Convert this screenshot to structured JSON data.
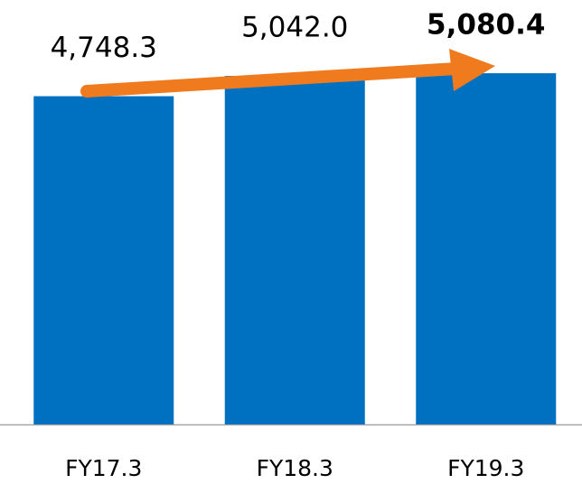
{
  "chart_data": {
    "type": "bar",
    "categories": [
      "FY17.3",
      "FY18.3",
      "FY19.3"
    ],
    "values": [
      4748.3,
      5042.0,
      5080.4
    ],
    "value_labels": [
      "4,748.3",
      "5,042.0",
      "5,080.4"
    ],
    "color": "#0070c0",
    "ylim": [
      0,
      6140
    ]
  }
}
